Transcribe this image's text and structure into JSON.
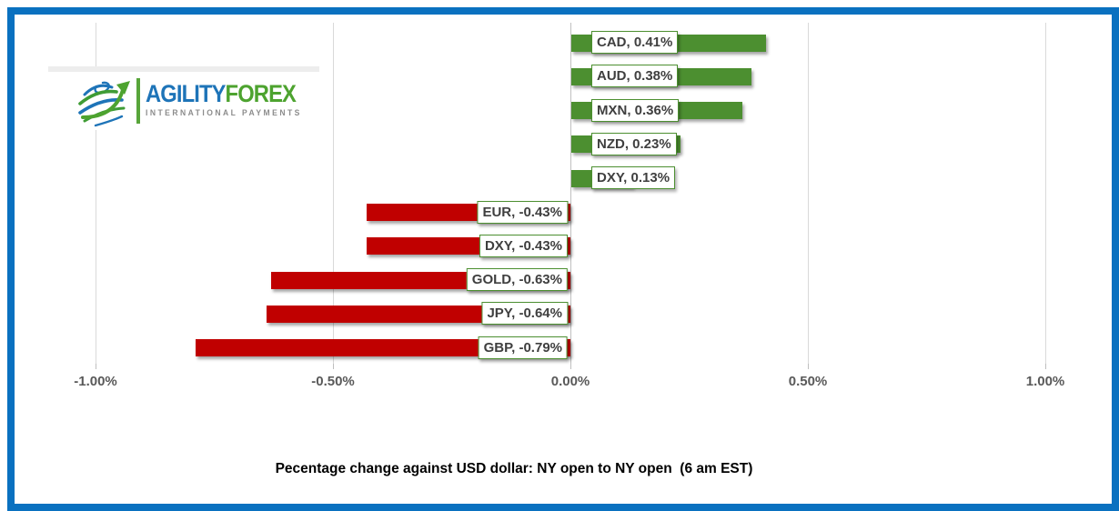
{
  "frame": {
    "border_color": "#0a71c0"
  },
  "logo": {
    "brand_primary": "AGILITY",
    "brand_secondary": "FOREX",
    "tagline": "INTERNATIONAL PAYMENTS",
    "colors": {
      "blue": "#1e74b8",
      "green": "#4da32f",
      "tagline_gray": "#8c8c8c"
    }
  },
  "chart_data": {
    "type": "bar",
    "orientation": "horizontal",
    "title": "Pecentage change against USD dollar: NY open to NY open  (6 am EST)",
    "points": [
      {
        "category": "CAD",
        "value": 0.41,
        "label": "CAD, 0.41%"
      },
      {
        "category": "AUD",
        "value": 0.38,
        "label": "AUD, 0.38%"
      },
      {
        "category": "MXN",
        "value": 0.36,
        "label": "MXN, 0.36%"
      },
      {
        "category": "NZD",
        "value": 0.23,
        "label": "NZD, 0.23%"
      },
      {
        "category": "DXY",
        "value": 0.13,
        "label": "DXY, 0.13%"
      },
      {
        "category": "EUR",
        "value": -0.43,
        "label": "EUR, -0.43%"
      },
      {
        "category": "DXY",
        "value": -0.43,
        "label": "DXY, -0.43%"
      },
      {
        "category": "GOLD",
        "value": -0.63,
        "label": "GOLD, -0.63%"
      },
      {
        "category": "JPY",
        "value": -0.64,
        "label": "JPY, -0.64%"
      },
      {
        "category": "GBP",
        "value": -0.79,
        "label": "GBP, -0.79%"
      }
    ],
    "x_ticks": [
      "-1.00%",
      "-0.50%",
      "0.00%",
      "0.50%",
      "1.00%"
    ],
    "x_tick_values": [
      -1,
      -0.5,
      0,
      0.5,
      1
    ],
    "xlim": [
      -1,
      1
    ],
    "grid": true,
    "legend": "none",
    "positive_color": "#4c8f30",
    "negative_color": "#c00000",
    "gridline_color": "#d9d9d9",
    "tick_label_color": "#595959",
    "label_text_color": "#3f3f3f",
    "label_border_color": "#4c8f30"
  }
}
